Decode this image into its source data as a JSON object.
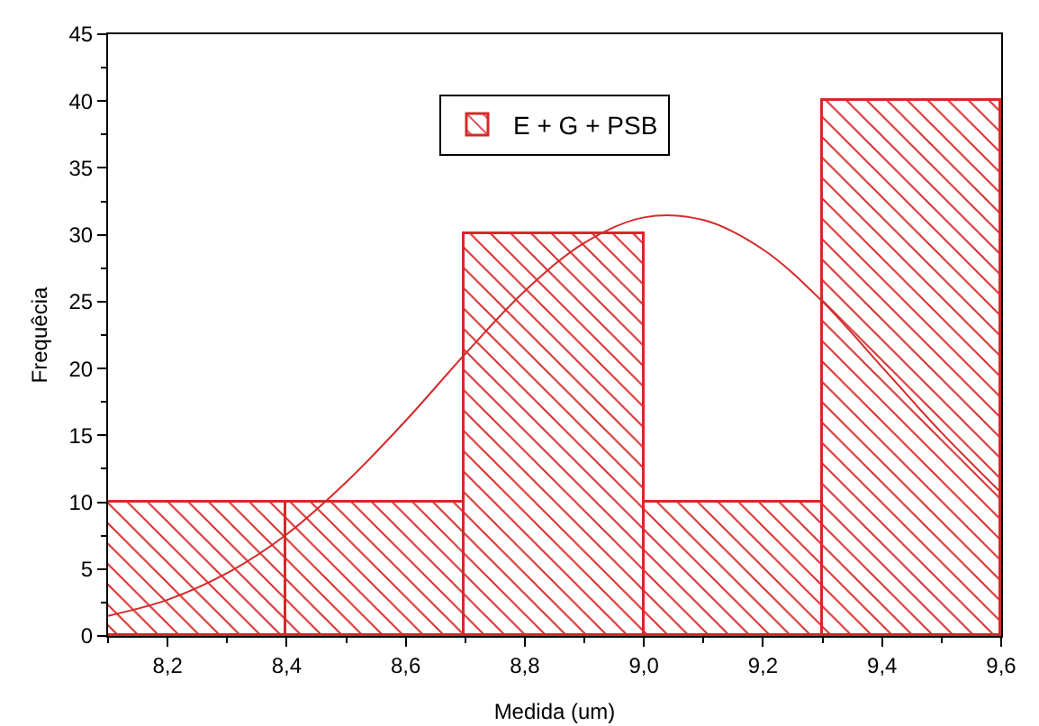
{
  "chart_data": {
    "type": "histogram",
    "xlabel": "Medida (um)",
    "ylabel": "Frequêcia",
    "bins": [
      8.1,
      8.4,
      8.7,
      9.0,
      9.3,
      9.6
    ],
    "series": [
      {
        "name": "E + G + PSB",
        "color": "#d42a2a",
        "values": [
          10,
          10,
          30,
          10,
          40
        ]
      },
      {
        "type": "line",
        "color": "#d42a2a",
        "x": [
          8.1,
          8.2,
          8.3,
          8.4,
          8.5,
          8.6,
          8.7,
          8.8,
          8.9,
          9.0,
          9.1,
          9.2,
          9.3,
          9.4,
          9.5,
          9.6
        ],
        "values": [
          1.5,
          2.7,
          4.7,
          7.6,
          11.5,
          16.1,
          21.1,
          25.8,
          29.4,
          31.3,
          31.1,
          28.9,
          25.0,
          20.1,
          15.2,
          10.7
        ]
      }
    ],
    "xlim": [
      8.1,
      9.6
    ],
    "xticks": [
      {
        "value": 8.2,
        "label": "8,2"
      },
      {
        "value": 8.4,
        "label": "8,4"
      },
      {
        "value": 8.6,
        "label": "8,6"
      },
      {
        "value": 8.8,
        "label": "8,8"
      },
      {
        "value": 9.0,
        "label": "9,0"
      },
      {
        "value": 9.2,
        "label": "9,2"
      },
      {
        "value": 9.4,
        "label": "9,4"
      },
      {
        "value": 9.6,
        "label": "9,6"
      }
    ],
    "ylim": [
      0,
      45
    ],
    "yticks": [
      0,
      5,
      10,
      15,
      20,
      25,
      30,
      35,
      40,
      45
    ],
    "grid": false,
    "legend": "top",
    "line_style": "solid",
    "marker": "none"
  }
}
